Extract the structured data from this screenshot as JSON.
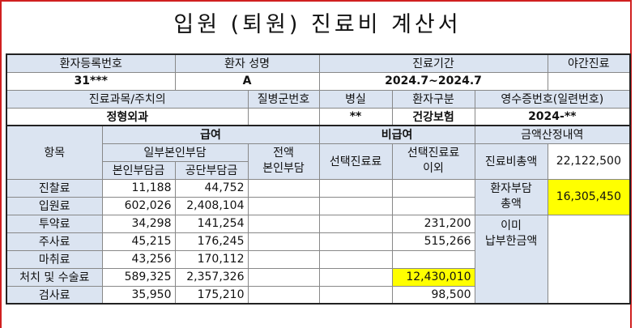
{
  "title": "입원 (퇴원) 진료비 계산서",
  "patient": {
    "headers": {
      "reg_no": "환자등록번호",
      "name": "환자 성명",
      "period": "진료기간",
      "night": "야간진료",
      "dept": "진료과목/주치의",
      "disease_group": "질병군번호",
      "room": "병실",
      "patient_type": "환자구분",
      "receipt_no": "영수증번호(일련번호)"
    },
    "values": {
      "reg_no": "31***",
      "name": "A",
      "period": "2024.7~2024.7",
      "night": "",
      "dept": "정형외과",
      "disease_group": "",
      "room": "**",
      "patient_type": "건강보험",
      "receipt_no": "2024-**"
    }
  },
  "fees": {
    "headers": {
      "item": "항목",
      "covered": "급여",
      "copay": "일부본인부담",
      "self_pay": "본인부담금",
      "insurer_pay": "공단부담금",
      "full_self": "전액\n본인부담",
      "non_covered": "비급여",
      "selected": "선택진료료",
      "other": "선택진료료\n이외",
      "calc": "금액산정내역"
    },
    "total_label": "진료비총액",
    "total_value": "22,122,500",
    "patient_total_label": "환자부담\n총액",
    "patient_total_value": "16,305,450",
    "paid_label": "이미\n납부한금액",
    "rows": [
      {
        "item": "진찰료",
        "self": "11,188",
        "insurer": "44,752",
        "full": "",
        "sel": "",
        "other": ""
      },
      {
        "item": "입원료",
        "self": "602,026",
        "insurer": "2,408,104",
        "full": "",
        "sel": "",
        "other": ""
      },
      {
        "item": "투약료",
        "self": "34,298",
        "insurer": "141,254",
        "full": "",
        "sel": "",
        "other": "231,200"
      },
      {
        "item": "주사료",
        "self": "45,215",
        "insurer": "176,245",
        "full": "",
        "sel": "",
        "other": "515,266"
      },
      {
        "item": "마취료",
        "self": "43,256",
        "insurer": "170,112",
        "full": "",
        "sel": "",
        "other": ""
      },
      {
        "item": "처치 및 수술료",
        "self": "589,325",
        "insurer": "2,357,326",
        "full": "",
        "sel": "",
        "other": "12,430,010"
      },
      {
        "item": "검사료",
        "self": "35,950",
        "insurer": "175,210",
        "full": "",
        "sel": "",
        "other": "98,500"
      }
    ]
  }
}
